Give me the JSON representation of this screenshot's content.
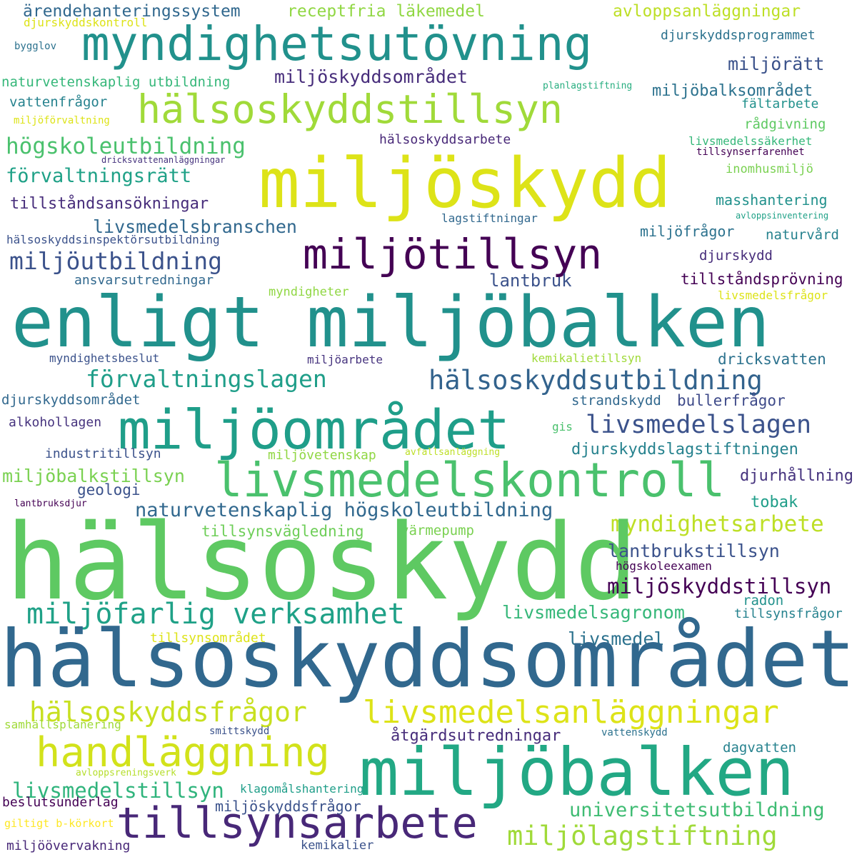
{
  "words": [
    {
      "text": "ärendehanteringssystem",
      "color": "#31688e"
    },
    {
      "text": "receptfria läkemedel",
      "color": "#90d743"
    },
    {
      "text": "avloppsanläggningar",
      "color": "#bddf26"
    },
    {
      "text": "djurskyddskontroll",
      "color": "#dde318"
    },
    {
      "text": "myndighetsutövning",
      "color": "#21918c"
    },
    {
      "text": "djurskyddsprogrammet",
      "color": "#2c728e"
    },
    {
      "text": "bygglov",
      "color": "#2c728e"
    },
    {
      "text": "miljörätt",
      "color": "#3b528b"
    },
    {
      "text": "miljöskyddsområdet",
      "color": "#472d7b"
    },
    {
      "text": "naturvetenskaplig utbildning",
      "color": "#35b779"
    },
    {
      "text": "planlagstiftning",
      "color": "#28ae80"
    },
    {
      "text": "miljöbalksområdet",
      "color": "#2c728e"
    },
    {
      "text": "vattenfrågor",
      "color": "#26828e"
    },
    {
      "text": "hälsoskyddstillsyn",
      "color": "#a0da39"
    },
    {
      "text": "fältarbete",
      "color": "#21918c"
    },
    {
      "text": "miljöförvaltning",
      "color": "#dde318"
    },
    {
      "text": "rådgivning",
      "color": "#5ec962"
    },
    {
      "text": "hälsoskyddsarbete",
      "color": "#482878"
    },
    {
      "text": "livsmedelssäkerhet",
      "color": "#35b779"
    },
    {
      "text": "högskoleutbildning",
      "color": "#4ac16d"
    },
    {
      "text": "tillsynserfarenhet",
      "color": "#440154"
    },
    {
      "text": "dricksvattenanläggningar",
      "color": "#46337e"
    },
    {
      "text": "miljöskydd",
      "color": "#dde318"
    },
    {
      "text": "inomhusmiljö",
      "color": "#7ad151"
    },
    {
      "text": "förvaltningsrätt",
      "color": "#1fa187"
    },
    {
      "text": "masshantering",
      "color": "#21918c"
    },
    {
      "text": "tillståndsansökningar",
      "color": "#472d7b"
    },
    {
      "text": "avloppsinventering",
      "color": "#1fa187"
    },
    {
      "text": "lagstiftningar",
      "color": "#31688e"
    },
    {
      "text": "livsmedelsbranschen",
      "color": "#31688e"
    },
    {
      "text": "miljöfrågor",
      "color": "#2c728e"
    },
    {
      "text": "hälsoskyddsinspektörsutbildning",
      "color": "#3b528b"
    },
    {
      "text": "naturvård",
      "color": "#26828e"
    },
    {
      "text": "miljötillsyn",
      "color": "#440154"
    },
    {
      "text": "miljöutbildning",
      "color": "#3b528b"
    },
    {
      "text": "djurskydd",
      "color": "#472d7b"
    },
    {
      "text": "ansvarsutredningar",
      "color": "#31688e"
    },
    {
      "text": "lantbruk",
      "color": "#3b528b"
    },
    {
      "text": "tillståndsprövning",
      "color": "#440154"
    },
    {
      "text": "myndigheter",
      "color": "#90d743"
    },
    {
      "text": "livsmedelsfrågor",
      "color": "#dde318"
    },
    {
      "text": "enligt miljöbalken",
      "color": "#21918c"
    },
    {
      "text": "myndighetsbeslut",
      "color": "#3b528b"
    },
    {
      "text": "miljöarbete",
      "color": "#46337e"
    },
    {
      "text": "kemikalietillsyn",
      "color": "#a0da39"
    },
    {
      "text": "dricksvatten",
      "color": "#2c728e"
    },
    {
      "text": "förvaltningslagen",
      "color": "#1f9e89"
    },
    {
      "text": "hälsoskyddsutbildning",
      "color": "#33638d"
    },
    {
      "text": "djurskyddsområdet",
      "color": "#31688e"
    },
    {
      "text": "strandskydd",
      "color": "#31688e"
    },
    {
      "text": "bullerfrågor",
      "color": "#3e4a89"
    },
    {
      "text": "miljöområdet",
      "color": "#1f9e89"
    },
    {
      "text": "livsmedelslagen",
      "color": "#3b528b"
    },
    {
      "text": "alkohollagen",
      "color": "#46337e"
    },
    {
      "text": "gis",
      "color": "#4ac16d"
    },
    {
      "text": "industritillsyn",
      "color": "#3b528b"
    },
    {
      "text": "miljövetenskap",
      "color": "#90d743"
    },
    {
      "text": "avfallsanläggning",
      "color": "#bddf26"
    },
    {
      "text": "djurskyddslagstiftningen",
      "color": "#26828e"
    },
    {
      "text": "livsmedelskontroll",
      "color": "#4ac16d"
    },
    {
      "text": "miljöbalkstillsyn",
      "color": "#7ad151"
    },
    {
      "text": "djurhållning",
      "color": "#46337e"
    },
    {
      "text": "geologi",
      "color": "#3b528b"
    },
    {
      "text": "lantbruksdjur",
      "color": "#440154"
    },
    {
      "text": "naturvetenskaplig högskoleutbildning",
      "color": "#31688e"
    },
    {
      "text": "tobak",
      "color": "#1f9e89"
    },
    {
      "text": "myndighetsarbete",
      "color": "#bddf26"
    },
    {
      "text": "tillsynsvägledning",
      "color": "#6ece58"
    },
    {
      "text": "värmepump",
      "color": "#7ad151"
    },
    {
      "text": "hälsoskydd",
      "color": "#5ec962"
    },
    {
      "text": "lantbrukstillsyn",
      "color": "#3b528b"
    },
    {
      "text": "högskoleexamen",
      "color": "#440154"
    },
    {
      "text": "miljöskyddstillsyn",
      "color": "#440154"
    },
    {
      "text": "miljöfarlig verksamhet",
      "color": "#1fa187"
    },
    {
      "text": "livsmedelsagronom",
      "color": "#35b779"
    },
    {
      "text": "radon",
      "color": "#21918c"
    },
    {
      "text": "tillsynsfrågor",
      "color": "#26828e"
    },
    {
      "text": "tillsynsområdet",
      "color": "#dde318"
    },
    {
      "text": "livsmedel",
      "color": "#2c728e"
    },
    {
      "text": "hälsoskyddsområdet",
      "color": "#31688e"
    },
    {
      "text": "hälsoskyddsfrågor",
      "color": "#c8e020"
    },
    {
      "text": "livsmedelsanläggningar",
      "color": "#dde318"
    },
    {
      "text": "samhällsplanering",
      "color": "#a0da39"
    },
    {
      "text": "smittskydd",
      "color": "#3b528b"
    },
    {
      "text": "vattenskydd",
      "color": "#2c728e"
    },
    {
      "text": "handläggning",
      "color": "#d2e21b"
    },
    {
      "text": "åtgärdsutredningar",
      "color": "#472d7b"
    },
    {
      "text": "dagvatten",
      "color": "#26828e"
    },
    {
      "text": "miljöbalken",
      "color": "#22a884"
    },
    {
      "text": "avloppsreningsverk",
      "color": "#b5de2b"
    },
    {
      "text": "livsmedelstillsyn",
      "color": "#2fb47c"
    },
    {
      "text": "klagomålshantering",
      "color": "#1f9e89"
    },
    {
      "text": "beslutsunderlag",
      "color": "#440154"
    },
    {
      "text": "miljöskyddsfrågor",
      "color": "#3b528b"
    },
    {
      "text": "universitetsutbildning",
      "color": "#3fbc73"
    },
    {
      "text": "tillsynsarbete",
      "color": "#482878"
    },
    {
      "text": "giltigt b-körkort",
      "color": "#fde725"
    },
    {
      "text": "miljölagstiftning",
      "color": "#a0da39"
    },
    {
      "text": "miljöövervakning",
      "color": "#482878"
    },
    {
      "text": "kemikalier",
      "color": "#3b528b"
    }
  ]
}
